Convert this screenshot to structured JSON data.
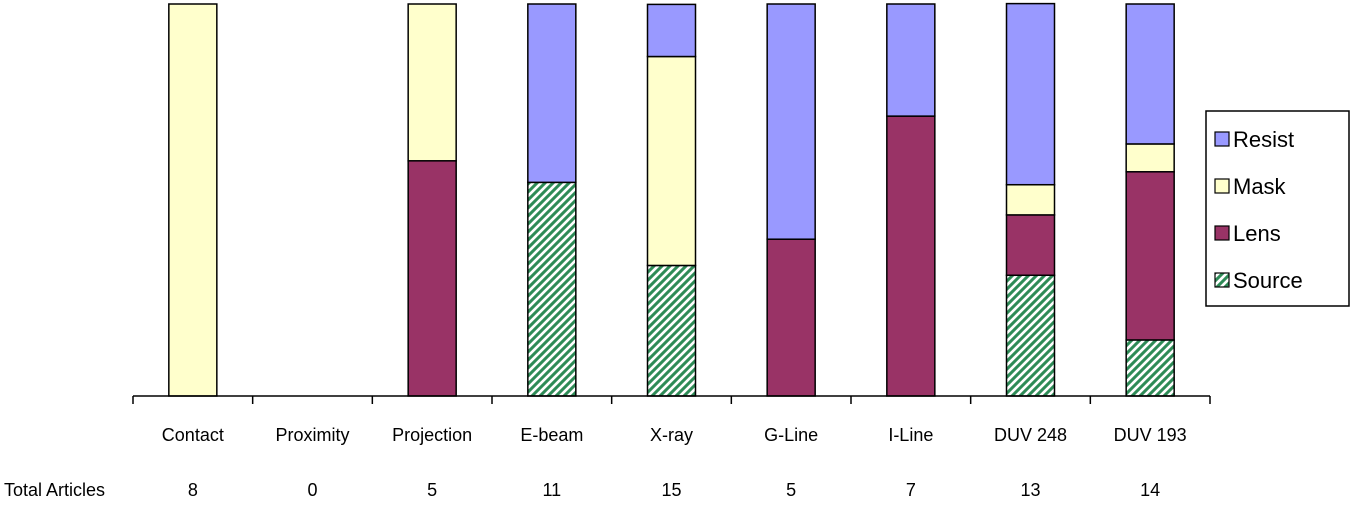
{
  "chart_data": {
    "type": "bar",
    "stacked": true,
    "normalized": true,
    "categories": [
      "Contact",
      "Proximity",
      "Projection",
      "E-beam",
      "X-ray",
      "G-Line",
      "I-Line",
      "DUV 248",
      "DUV 193"
    ],
    "series": [
      {
        "name": "Source",
        "color": "#2e8b57",
        "pattern": "diagonal-hatch",
        "values": [
          0,
          0,
          0,
          0.545,
          0.333,
          0,
          0,
          0.308,
          0.143
        ]
      },
      {
        "name": "Lens",
        "color": "#993366",
        "values": [
          0,
          0,
          0.6,
          0,
          0,
          0.4,
          0.714,
          0.154,
          0.429
        ]
      },
      {
        "name": "Mask",
        "color": "#ffffcc",
        "values": [
          1.0,
          0,
          0.4,
          0,
          0.533,
          0,
          0,
          0.077,
          0.071
        ]
      },
      {
        "name": "Resist",
        "color": "#9999ff",
        "values": [
          0,
          0,
          0,
          0.455,
          0.133,
          0.6,
          0.286,
          0.462,
          0.357
        ]
      }
    ],
    "ylim": [
      0,
      1
    ],
    "grid": false,
    "legend": "right",
    "total_row": {
      "label": "Total Articles",
      "values": [
        "8",
        "0",
        "5",
        "11",
        "15",
        "5",
        "7",
        "13",
        "14"
      ]
    }
  }
}
